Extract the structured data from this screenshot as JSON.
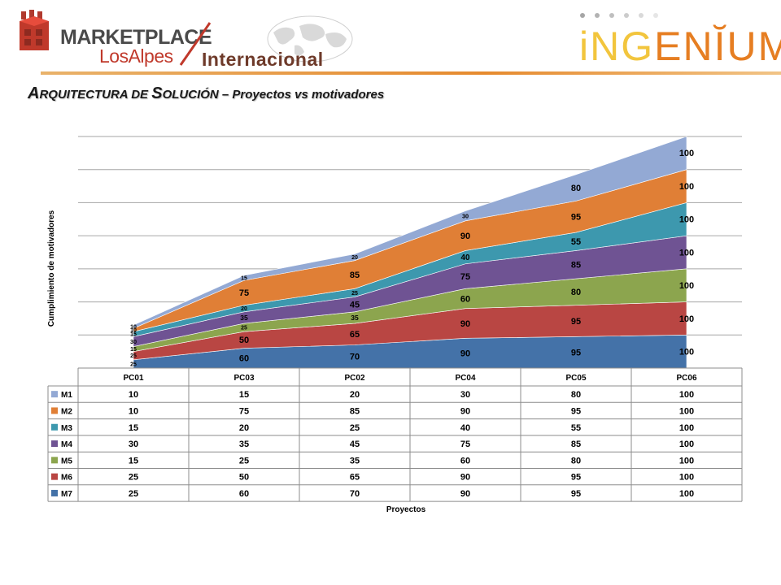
{
  "header": {
    "brand_main": "MARKETPLACE",
    "brand_sub": "LosAlpes",
    "brand_tag": "Internacional",
    "partner_part1": "iNG",
    "partner_part2": "ENĬUM",
    "rule_color": "#e68a2e"
  },
  "slide": {
    "title_part1": "A",
    "title_part2": "RQUITECTURA DE ",
    "title_part3": "S",
    "title_part4": "OLUCIÓN",
    "title_part5": " – Proyectos vs motivadores"
  },
  "chart_data": {
    "type": "area",
    "stacked": true,
    "categories": [
      "PC01",
      "PC03",
      "PC02",
      "PC04",
      "PC05",
      "PC06"
    ],
    "ylabel": "Cumplimiento de motivadores",
    "xlabel": "Proyectos",
    "ylim": [
      0,
      700
    ],
    "grid": true,
    "data_table": true,
    "series": [
      {
        "name": "M7",
        "color": "#4472a8",
        "values": [
          25,
          60,
          70,
          90,
          95,
          100
        ]
      },
      {
        "name": "M6",
        "color": "#b94643",
        "values": [
          25,
          50,
          65,
          90,
          95,
          100
        ]
      },
      {
        "name": "M5",
        "color": "#8ca54e",
        "values": [
          15,
          25,
          35,
          60,
          80,
          100
        ]
      },
      {
        "name": "M4",
        "color": "#6f5393",
        "values": [
          30,
          35,
          45,
          75,
          85,
          100
        ]
      },
      {
        "name": "M3",
        "color": "#3d98ae",
        "values": [
          15,
          20,
          25,
          40,
          55,
          100
        ]
      },
      {
        "name": "M2",
        "color": "#e07f36",
        "values": [
          10,
          75,
          85,
          90,
          95,
          100
        ]
      },
      {
        "name": "M1",
        "color": "#93a9d4",
        "values": [
          10,
          15,
          20,
          30,
          80,
          100
        ]
      }
    ],
    "table_order": [
      "M1",
      "M2",
      "M3",
      "M4",
      "M5",
      "M6",
      "M7"
    ]
  }
}
